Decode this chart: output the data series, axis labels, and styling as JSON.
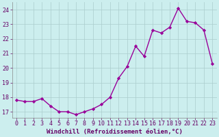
{
  "x": [
    0,
    1,
    2,
    3,
    4,
    5,
    6,
    7,
    8,
    9,
    10,
    11,
    12,
    13,
    14,
    15,
    16,
    17,
    18,
    19,
    20,
    21,
    22,
    23
  ],
  "y": [
    17.8,
    17.7,
    17.7,
    17.9,
    17.4,
    17.0,
    17.0,
    16.8,
    17.0,
    17.2,
    17.5,
    18.0,
    19.3,
    20.1,
    21.5,
    20.8,
    22.6,
    22.4,
    22.8,
    24.1,
    23.2,
    23.1,
    22.6,
    20.3
  ],
  "line_color": "#990099",
  "marker": "D",
  "marker_size": 2.2,
  "bg_color": "#cceeee",
  "grid_color": "#aacccc",
  "xlabel": "Windchill (Refroidissement éolien,°C)",
  "xlabel_fontsize": 6.5,
  "tick_fontsize": 6.0,
  "ylim": [
    16.6,
    24.5
  ],
  "yticks": [
    17,
    18,
    19,
    20,
    21,
    22,
    23,
    24
  ],
  "xlim": [
    -0.5,
    23.5
  ],
  "xticks": [
    0,
    1,
    2,
    3,
    4,
    5,
    6,
    7,
    8,
    9,
    10,
    11,
    12,
    13,
    14,
    15,
    16,
    17,
    18,
    19,
    20,
    21,
    22,
    23
  ],
  "line_width": 1.0,
  "spine_color": "#888888"
}
